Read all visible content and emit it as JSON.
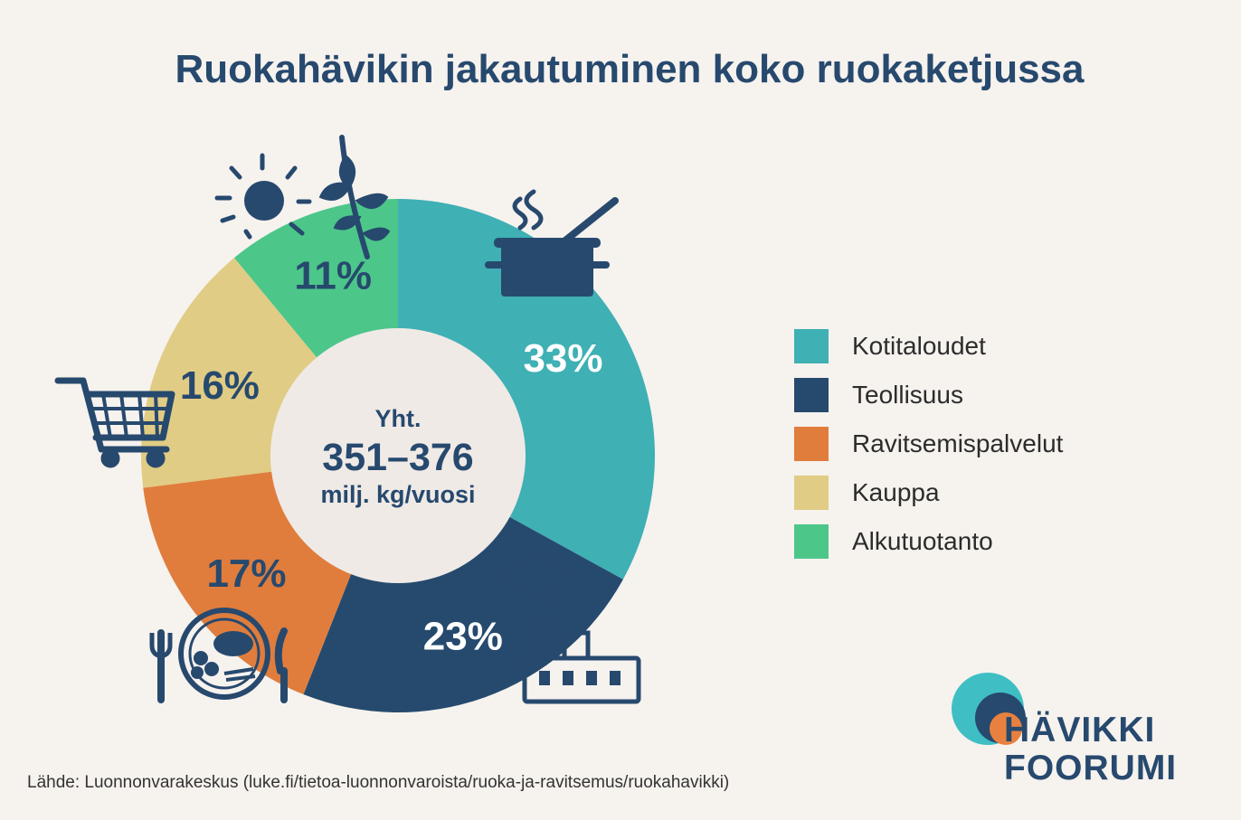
{
  "chart_data": {
    "type": "pie",
    "title": "Ruokahävikin jakautuminen koko ruokaketjussa",
    "center_text": [
      "Yht.",
      "351–376",
      "milj. kg/vuosi"
    ],
    "slices": [
      {
        "name": "Kotitaloudet",
        "value": 33,
        "label": "33%",
        "color": "#3fb0b4"
      },
      {
        "name": "Teollisuus",
        "value": 23,
        "label": "23%",
        "color": "#264a6e"
      },
      {
        "name": "Ravitsemispalvelut",
        "value": 17,
        "label": "17%",
        "color": "#e07d3c"
      },
      {
        "name": "Kauppa",
        "value": 16,
        "label": "16%",
        "color": "#e0cc84"
      },
      {
        "name": "Alkutuotanto",
        "value": 11,
        "label": "11%",
        "color": "#4dc68a"
      }
    ],
    "legend_position": "right"
  },
  "icons": [
    "cooking-pot-icon",
    "factory-icon",
    "plate-cutlery-icon",
    "shopping-cart-icon",
    "sun-plant-icon"
  ],
  "logo": {
    "line1": "HÄVIKKI",
    "line2": "FOORUMI"
  },
  "source": "Lähde: Luonnonvarakeskus (luke.fi/tietoa-luonnonvaroista/ruoka-ja-ravitsemus/ruokahavikki)"
}
